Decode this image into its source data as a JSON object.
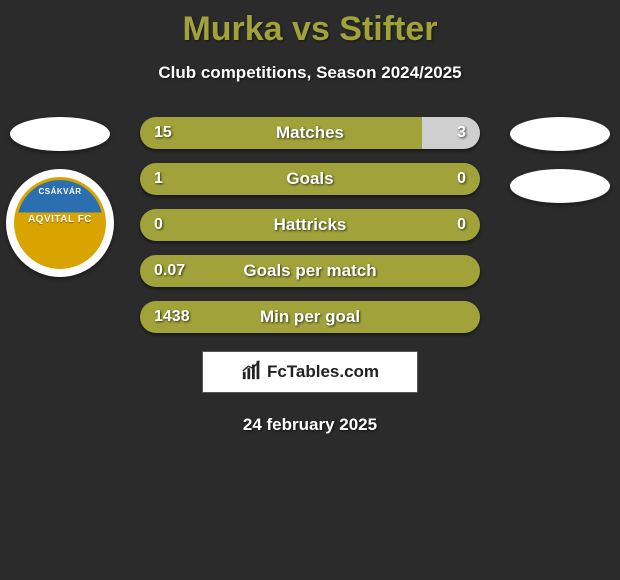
{
  "header": {
    "title": "Murka vs Stifter",
    "subtitle": "Club competitions, Season 2024/2025"
  },
  "colors": {
    "left_fill": "#a1a33a",
    "right_fill": "#cfcfcf",
    "background": "#2b2b2b",
    "title_color": "#a1a33a",
    "text_color": "#ffffff"
  },
  "clubs": {
    "left": {
      "badge_top": "CSÁKVÁR",
      "badge_mid": "AQVITAL FC"
    }
  },
  "stats": [
    {
      "label": "Matches",
      "left_val": "15",
      "right_val": "3",
      "left_pct": 83,
      "right_pct": 17
    },
    {
      "label": "Goals",
      "left_val": "1",
      "right_val": "0",
      "left_pct": 100,
      "right_pct": 0
    },
    {
      "label": "Hattricks",
      "left_val": "0",
      "right_val": "0",
      "left_pct": 100,
      "right_pct": 0
    },
    {
      "label": "Goals per match",
      "left_val": "0.07",
      "right_val": "",
      "left_pct": 100,
      "right_pct": 0
    },
    {
      "label": "Min per goal",
      "left_val": "1438",
      "right_val": "",
      "left_pct": 100,
      "right_pct": 0
    }
  ],
  "footer": {
    "logo_text": "FcTables.com",
    "date": "24 february 2025"
  }
}
